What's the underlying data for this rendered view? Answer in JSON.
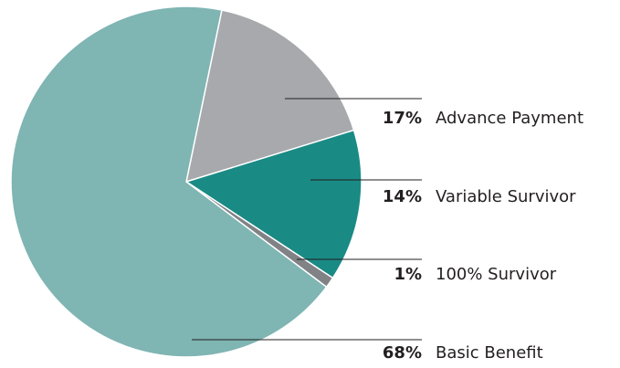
{
  "chart_data": {
    "type": "pie",
    "categories": [
      "Advance Payment",
      "Variable Survivor",
      "100% Survivor",
      "Basic Benefit"
    ],
    "values": [
      17,
      14,
      1,
      68
    ],
    "value_labels": [
      "17%",
      "14%",
      "1%",
      "68%"
    ],
    "colors": [
      "#a7a9ac",
      "#1a8a85",
      "#808285",
      "#7fb5b3"
    ]
  }
}
